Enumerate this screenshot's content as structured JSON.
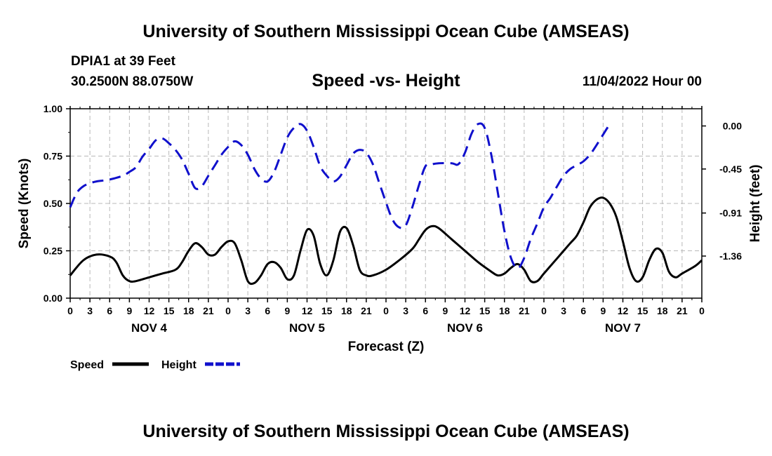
{
  "header": {
    "title": "University of Southern Mississippi Ocean Cube (AMSEAS)",
    "station": "DPIA1 at 39 Feet",
    "coords": "30.2500N  88.0750W",
    "chart_title": "Speed -vs- Height",
    "datetime": "11/04/2022 Hour 00"
  },
  "footer": {
    "title": "University of Southern Mississippi Ocean Cube (AMSEAS)"
  },
  "legend": [
    {
      "label": "Speed",
      "color": "#000000",
      "dash": "solid"
    },
    {
      "label": "Height",
      "color": "#1010cc",
      "dash": "dashed"
    }
  ],
  "chart_data": {
    "type": "line",
    "xlabel": "Forecast (Z)",
    "ylabel": "Speed (Knots)",
    "y2label": "Height (feet)",
    "xlim": [
      0,
      96
    ],
    "ylim": [
      0,
      1
    ],
    "y2lim": [
      -1.8,
      0.18
    ],
    "x_tick_labels": [
      "0",
      "3",
      "6",
      "9",
      "12",
      "15",
      "18",
      "21",
      "0",
      "3",
      "6",
      "9",
      "12",
      "15",
      "18",
      "21",
      "0",
      "3",
      "6",
      "9",
      "12",
      "15",
      "18",
      "21",
      "0",
      "3",
      "6",
      "9",
      "12",
      "15",
      "18",
      "21",
      "0"
    ],
    "y_ticks": [
      {
        "value": 0,
        "label": "0.00"
      },
      {
        "value": 0.25,
        "label": "0.25"
      },
      {
        "value": 0.5,
        "label": "0.50"
      },
      {
        "value": 0.75,
        "label": "0.75"
      },
      {
        "value": 1,
        "label": "1.00"
      }
    ],
    "y2_ticks": [
      {
        "value": 0,
        "label": "0.00"
      },
      {
        "value": -0.45,
        "label": "-0.45"
      },
      {
        "value": -0.91,
        "label": "-0.91"
      },
      {
        "value": -1.36,
        "label": "-1.36"
      }
    ],
    "day_labels": [
      {
        "x": 12,
        "label": "NOV 4"
      },
      {
        "x": 36,
        "label": "NOV 5"
      },
      {
        "x": 60,
        "label": "NOV 6"
      },
      {
        "x": 84,
        "label": "NOV 7"
      }
    ],
    "series": [
      {
        "name": "Speed",
        "axis": "left",
        "color": "#000000",
        "points": [
          [
            0,
            0.12
          ],
          [
            2,
            0.2
          ],
          [
            4,
            0.23
          ],
          [
            6,
            0.22
          ],
          [
            7,
            0.19
          ],
          [
            8,
            0.12
          ],
          [
            9,
            0.09
          ],
          [
            10,
            0.09
          ],
          [
            12,
            0.11
          ],
          [
            14,
            0.13
          ],
          [
            16,
            0.15
          ],
          [
            17,
            0.19
          ],
          [
            18,
            0.25
          ],
          [
            19,
            0.29
          ],
          [
            20,
            0.27
          ],
          [
            21,
            0.23
          ],
          [
            22,
            0.23
          ],
          [
            23,
            0.27
          ],
          [
            24,
            0.3
          ],
          [
            25,
            0.29
          ],
          [
            26,
            0.2
          ],
          [
            27,
            0.09
          ],
          [
            28,
            0.08
          ],
          [
            29,
            0.12
          ],
          [
            30,
            0.18
          ],
          [
            31,
            0.19
          ],
          [
            32,
            0.16
          ],
          [
            33,
            0.1
          ],
          [
            34,
            0.12
          ],
          [
            35,
            0.25
          ],
          [
            36,
            0.36
          ],
          [
            37,
            0.33
          ],
          [
            38,
            0.18
          ],
          [
            39,
            0.12
          ],
          [
            40,
            0.2
          ],
          [
            41,
            0.35
          ],
          [
            42,
            0.37
          ],
          [
            43,
            0.28
          ],
          [
            44,
            0.15
          ],
          [
            45,
            0.12
          ],
          [
            46,
            0.12
          ],
          [
            48,
            0.15
          ],
          [
            50,
            0.2
          ],
          [
            52,
            0.26
          ],
          [
            53,
            0.31
          ],
          [
            54,
            0.36
          ],
          [
            55,
            0.38
          ],
          [
            56,
            0.37
          ],
          [
            58,
            0.31
          ],
          [
            60,
            0.25
          ],
          [
            62,
            0.19
          ],
          [
            64,
            0.14
          ],
          [
            65,
            0.12
          ],
          [
            66,
            0.13
          ],
          [
            67,
            0.16
          ],
          [
            68,
            0.18
          ],
          [
            69,
            0.15
          ],
          [
            70,
            0.09
          ],
          [
            71,
            0.09
          ],
          [
            72,
            0.13
          ],
          [
            74,
            0.21
          ],
          [
            76,
            0.29
          ],
          [
            77,
            0.33
          ],
          [
            78,
            0.4
          ],
          [
            79,
            0.48
          ],
          [
            80,
            0.52
          ],
          [
            81,
            0.53
          ],
          [
            82,
            0.5
          ],
          [
            83,
            0.43
          ],
          [
            84,
            0.3
          ],
          [
            85,
            0.16
          ],
          [
            86,
            0.09
          ],
          [
            87,
            0.11
          ],
          [
            88,
            0.2
          ],
          [
            89,
            0.26
          ],
          [
            90,
            0.24
          ],
          [
            91,
            0.14
          ],
          [
            92,
            0.11
          ],
          [
            93,
            0.13
          ],
          [
            95,
            0.17
          ],
          [
            96,
            0.2
          ]
        ]
      },
      {
        "name": "Height",
        "axis": "right",
        "color": "#1010cc",
        "points": [
          [
            0,
            -0.85
          ],
          [
            1,
            -0.7
          ],
          [
            2,
            -0.63
          ],
          [
            3,
            -0.6
          ],
          [
            4,
            -0.58
          ],
          [
            6,
            -0.56
          ],
          [
            8,
            -0.52
          ],
          [
            9,
            -0.48
          ],
          [
            10,
            -0.43
          ],
          [
            11,
            -0.32
          ],
          [
            12,
            -0.24
          ],
          [
            13,
            -0.15
          ],
          [
            14,
            -0.13
          ],
          [
            15,
            -0.18
          ],
          [
            16,
            -0.25
          ],
          [
            17,
            -0.35
          ],
          [
            18,
            -0.5
          ],
          [
            19,
            -0.65
          ],
          [
            20,
            -0.63
          ],
          [
            21,
            -0.52
          ],
          [
            22,
            -0.41
          ],
          [
            23,
            -0.3
          ],
          [
            24,
            -0.22
          ],
          [
            25,
            -0.16
          ],
          [
            26,
            -0.2
          ],
          [
            27,
            -0.3
          ],
          [
            28,
            -0.45
          ],
          [
            29,
            -0.55
          ],
          [
            30,
            -0.58
          ],
          [
            31,
            -0.48
          ],
          [
            32,
            -0.3
          ],
          [
            33,
            -0.12
          ],
          [
            34,
            -0.02
          ],
          [
            35,
            0.02
          ],
          [
            36,
            -0.05
          ],
          [
            37,
            -0.22
          ],
          [
            38,
            -0.42
          ],
          [
            39,
            -0.52
          ],
          [
            40,
            -0.58
          ],
          [
            41,
            -0.53
          ],
          [
            42,
            -0.41
          ],
          [
            43,
            -0.29
          ],
          [
            44,
            -0.25
          ],
          [
            45,
            -0.28
          ],
          [
            46,
            -0.4
          ],
          [
            47,
            -0.6
          ],
          [
            48,
            -0.8
          ],
          [
            49,
            -0.98
          ],
          [
            50,
            -1.06
          ],
          [
            51,
            -1.04
          ],
          [
            52,
            -0.85
          ],
          [
            53,
            -0.62
          ],
          [
            54,
            -0.42
          ],
          [
            55,
            -0.4
          ],
          [
            56,
            -0.39
          ],
          [
            58,
            -0.39
          ],
          [
            59,
            -0.4
          ],
          [
            60,
            -0.28
          ],
          [
            61,
            -0.08
          ],
          [
            62,
            0.02
          ],
          [
            63,
            -0.02
          ],
          [
            64,
            -0.3
          ],
          [
            65,
            -0.7
          ],
          [
            66,
            -1.1
          ],
          [
            67,
            -1.38
          ],
          [
            68,
            -1.49
          ],
          [
            69,
            -1.38
          ],
          [
            70,
            -1.18
          ],
          [
            71,
            -1.02
          ],
          [
            72,
            -0.85
          ],
          [
            73,
            -0.75
          ],
          [
            74,
            -0.63
          ],
          [
            75,
            -0.52
          ],
          [
            76,
            -0.45
          ],
          [
            77,
            -0.41
          ],
          [
            78,
            -0.37
          ],
          [
            79,
            -0.3
          ],
          [
            80,
            -0.2
          ],
          [
            81,
            -0.09
          ],
          [
            82,
            0.02
          ]
        ]
      }
    ]
  }
}
